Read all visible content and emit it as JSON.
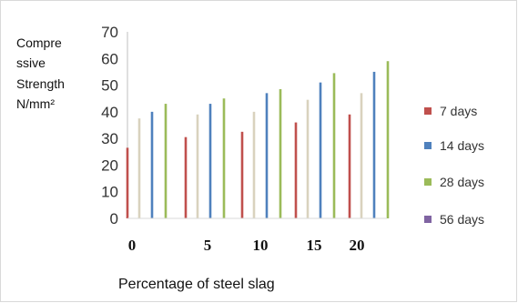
{
  "chart_data": {
    "type": "bar",
    "ylabel_lines": [
      "Compre",
      "ssive",
      "Strength",
      "N/mm²"
    ],
    "xlabel": "Percentage of steel slag",
    "ylim": [
      0,
      70
    ],
    "yticks": [
      0,
      10,
      20,
      30,
      40,
      50,
      60,
      70
    ],
    "categories": [
      "0",
      "5",
      "10",
      "15",
      "20"
    ],
    "legend_position": "right",
    "series": [
      {
        "name": "7 days",
        "color": "#c0504d",
        "values": [
          26.5,
          30.5,
          32.5,
          36,
          39
        ]
      },
      {
        "name": "14 days",
        "color": "#4f81bd",
        "values": [
          40,
          43,
          47,
          51,
          55
        ]
      },
      {
        "name": "28 days",
        "color": "#9bbb59",
        "values": [
          43,
          45,
          48.5,
          54.5,
          59
        ]
      },
      {
        "name": "56 days",
        "color": "#8064a2",
        "values": [
          null,
          null,
          null,
          null,
          null
        ]
      }
    ],
    "extra_bars": [
      {
        "category_index": 0,
        "value": 37.5,
        "color": "#d9d2be"
      },
      {
        "category_index": 1,
        "value": 39,
        "color": "#d9d2be"
      },
      {
        "category_index": 2,
        "value": 40,
        "color": "#d9d2be"
      },
      {
        "category_index": 3,
        "value": 44.5,
        "color": "#d9d2be"
      },
      {
        "category_index": 4,
        "value": 47,
        "color": "#d9d2be"
      }
    ]
  }
}
